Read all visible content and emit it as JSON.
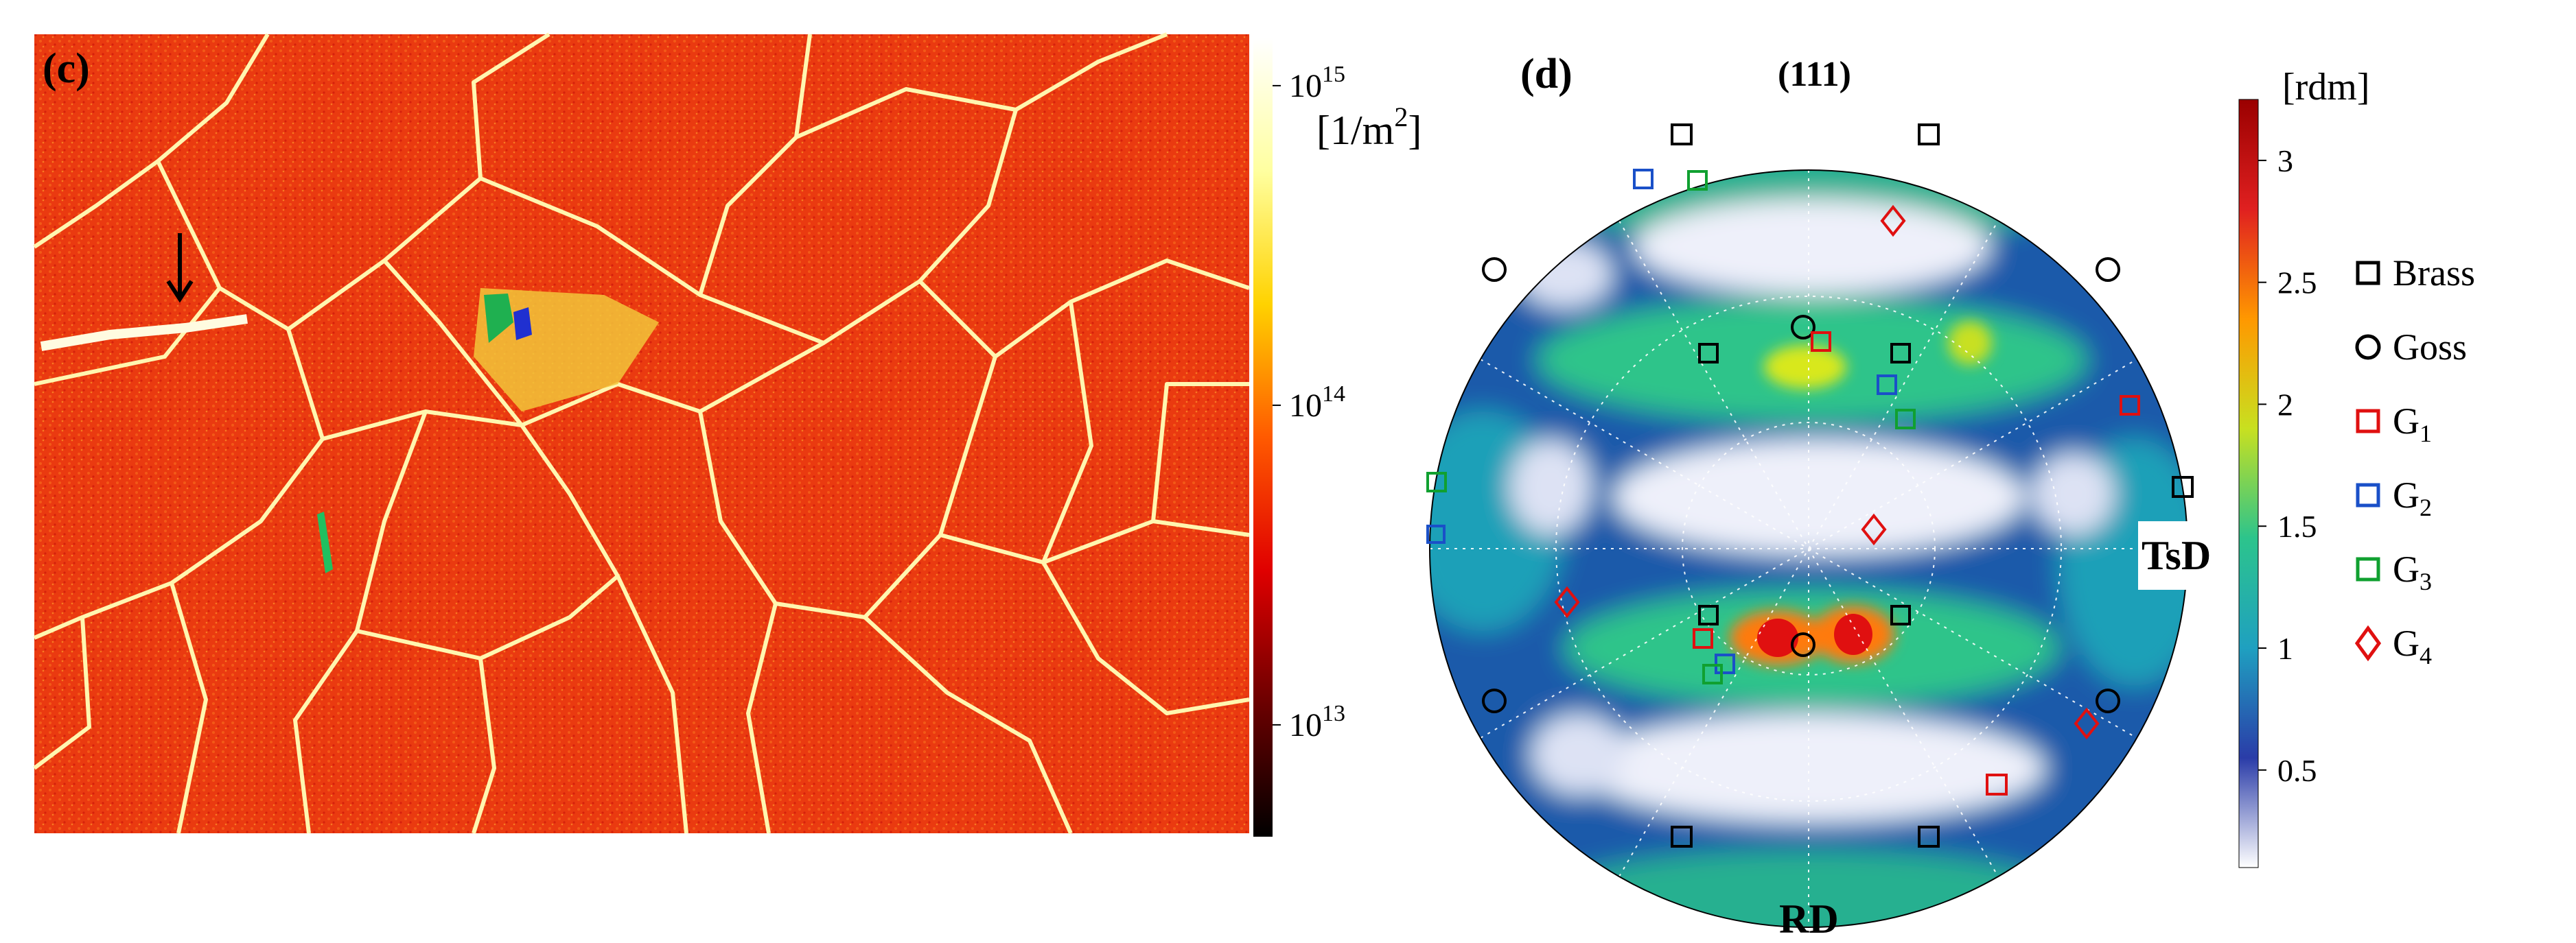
{
  "panel_c": {
    "label": "(c)",
    "colorbar": {
      "ticks": [
        {
          "base": "10",
          "exp": "15"
        },
        {
          "base": "10",
          "exp": "14"
        },
        {
          "base": "10",
          "exp": "13"
        }
      ],
      "unit_open": "[1/m",
      "unit_exp": "2",
      "unit_close": "]",
      "scale": "log",
      "colors": [
        "#000000",
        "#6b0000",
        "#e00000",
        "#ff5a00",
        "#ffd200",
        "#ffffa0",
        "#ffffff"
      ]
    }
  },
  "panel_d": {
    "label": "(d)",
    "pole_figure_title": "(111)",
    "axis_right": "TsD",
    "axis_bottom": "RD",
    "colorbar": {
      "unit": "[rdm]",
      "ticks": [
        "3",
        "2.5",
        "2",
        "1.5",
        "1",
        "0.5"
      ],
      "range": [
        0.1,
        3.25
      ],
      "colors": [
        "#ffffff",
        "#2a3ca8",
        "#1fa0c0",
        "#2cc48c",
        "#c8e020",
        "#ff9800",
        "#e02020",
        "#9a0000"
      ]
    },
    "legend": [
      {
        "marker": "square",
        "color": "#000000",
        "label": "Brass"
      },
      {
        "marker": "circle",
        "color": "#000000",
        "label": "Goss"
      },
      {
        "marker": "square",
        "color": "#e01010",
        "label": "G",
        "sub": "1"
      },
      {
        "marker": "square",
        "color": "#1a50c8",
        "label": "G",
        "sub": "2"
      },
      {
        "marker": "square",
        "color": "#10a030",
        "label": "G",
        "sub": "3"
      },
      {
        "marker": "diamond",
        "color": "#e01010",
        "label": "G",
        "sub": "4"
      }
    ]
  }
}
